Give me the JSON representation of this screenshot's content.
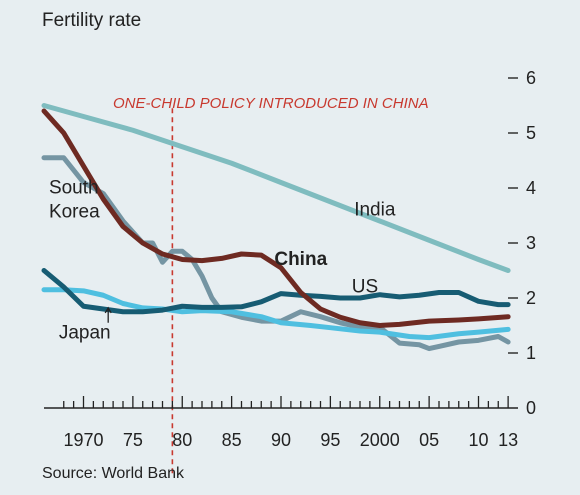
{
  "chart_data": {
    "type": "line",
    "title": "",
    "ylabel": "Fertility rate",
    "xlabel": "",
    "source": "Source: World Bank",
    "xlim": [
      1966,
      2014
    ],
    "ylim": [
      0,
      6
    ],
    "yticks": [
      0,
      1,
      2,
      3,
      4,
      5,
      6
    ],
    "xticks": [
      {
        "x": 1970,
        "label": "1970"
      },
      {
        "x": 1975,
        "label": "75"
      },
      {
        "x": 1980,
        "label": "80"
      },
      {
        "x": 1985,
        "label": "85"
      },
      {
        "x": 1990,
        "label": "90"
      },
      {
        "x": 1995,
        "label": "95"
      },
      {
        "x": 2000,
        "label": "2000"
      },
      {
        "x": 2005,
        "label": "05"
      },
      {
        "x": 2010,
        "label": "10"
      },
      {
        "x": 2013,
        "label": "13"
      }
    ],
    "grid": false,
    "annotation": {
      "x": 1979,
      "text": "ONE-CHILD POLICY INTRODUCED IN CHINA",
      "color": "#c8392f"
    },
    "series": [
      {
        "name": "India",
        "color": "#7fbcbf",
        "width": 5,
        "bold": false,
        "label_x": 1999.5,
        "label_y": 3.5,
        "anchor": "middle",
        "x": [
          1966,
          1970,
          1975,
          1980,
          1985,
          1990,
          1995,
          2000,
          2005,
          2010,
          2013
        ],
        "values": [
          5.5,
          5.3,
          5.05,
          4.75,
          4.45,
          4.1,
          3.75,
          3.4,
          3.05,
          2.7,
          2.5
        ]
      },
      {
        "name": "South Korea",
        "label_lines": [
          "South",
          "Korea"
        ],
        "color": "#7595a3",
        "width": 5,
        "bold": false,
        "label_x": 1966.5,
        "label_y": 3.9,
        "anchor": "start",
        "x": [
          1966,
          1968,
          1970,
          1972,
          1974,
          1976,
          1977,
          1978,
          1979,
          1980,
          1981,
          1982,
          1983,
          1984,
          1986,
          1988,
          1990,
          1992,
          1994,
          1996,
          1998,
          2000,
          2002,
          2004,
          2005,
          2006,
          2008,
          2010,
          2012,
          2013
        ],
        "values": [
          4.55,
          4.55,
          4.1,
          3.9,
          3.4,
          3.0,
          3.0,
          2.65,
          2.85,
          2.85,
          2.7,
          2.4,
          2.0,
          1.75,
          1.65,
          1.58,
          1.58,
          1.75,
          1.66,
          1.55,
          1.47,
          1.47,
          1.18,
          1.15,
          1.08,
          1.12,
          1.2,
          1.23,
          1.3,
          1.2
        ]
      },
      {
        "name": "Japan",
        "color": "#4fbfe0",
        "width": 5,
        "bold": false,
        "label_x": 1967.5,
        "label_y": 1.26,
        "anchor": "start",
        "x": [
          1966,
          1968,
          1970,
          1972,
          1974,
          1976,
          1978,
          1980,
          1982,
          1985,
          1988,
          1990,
          1993,
          1995,
          1998,
          2000,
          2003,
          2005,
          2008,
          2010,
          2013
        ],
        "values": [
          2.15,
          2.15,
          2.13,
          2.05,
          1.9,
          1.82,
          1.8,
          1.75,
          1.77,
          1.75,
          1.66,
          1.55,
          1.5,
          1.46,
          1.4,
          1.38,
          1.3,
          1.28,
          1.35,
          1.38,
          1.43
        ]
      },
      {
        "name": "US",
        "color": "#175c73",
        "width": 5,
        "bold": false,
        "label_x": 1998.5,
        "label_y": 2.1,
        "anchor": "middle",
        "x": [
          1966,
          1968,
          1970,
          1972,
          1974,
          1976,
          1978,
          1980,
          1982,
          1984,
          1986,
          1988,
          1990,
          1992,
          1994,
          1996,
          1998,
          2000,
          2002,
          2004,
          2006,
          2008,
          2010,
          2012,
          2013
        ],
        "values": [
          2.5,
          2.2,
          1.85,
          1.8,
          1.75,
          1.75,
          1.78,
          1.85,
          1.83,
          1.83,
          1.84,
          1.93,
          2.08,
          2.05,
          2.03,
          2.0,
          2.0,
          2.06,
          2.02,
          2.05,
          2.1,
          2.1,
          1.94,
          1.88,
          1.88
        ]
      },
      {
        "name": "China",
        "color": "#6e2a22",
        "width": 5,
        "bold": true,
        "label_x": 1992,
        "label_y": 2.6,
        "anchor": "middle",
        "x": [
          1966,
          1968,
          1970,
          1972,
          1974,
          1976,
          1978,
          1980,
          1982,
          1984,
          1986,
          1988,
          1990,
          1992,
          1994,
          1996,
          1998,
          2000,
          2002,
          2005,
          2008,
          2010,
          2013
        ],
        "values": [
          5.4,
          5.0,
          4.4,
          3.8,
          3.3,
          3.0,
          2.8,
          2.7,
          2.68,
          2.72,
          2.8,
          2.78,
          2.55,
          2.1,
          1.8,
          1.65,
          1.55,
          1.5,
          1.52,
          1.58,
          1.6,
          1.62,
          1.66
        ]
      }
    ]
  }
}
